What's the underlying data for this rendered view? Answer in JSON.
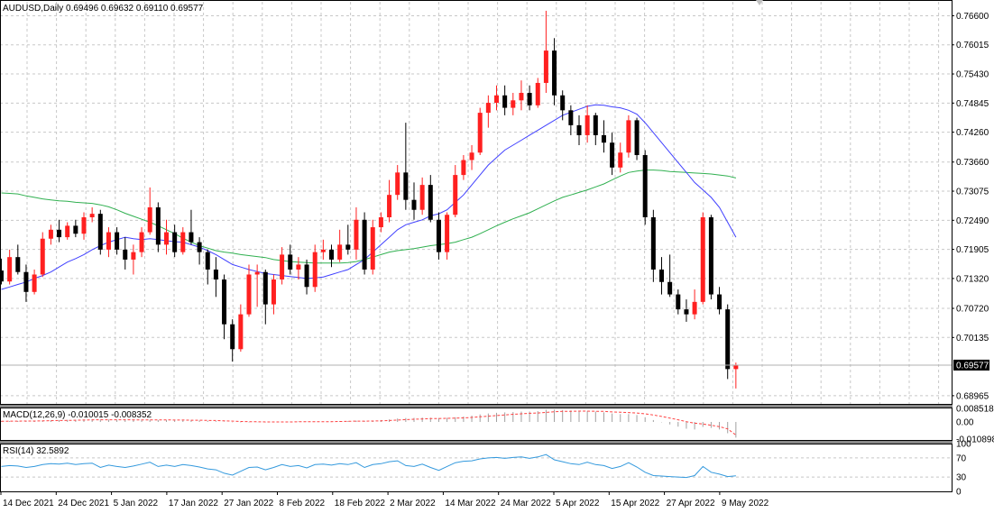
{
  "chart_data": {
    "type": "candlestick",
    "symbol_header": "AUDUSD,Daily  0.69496 0.69632 0.69110 0.69577",
    "current_price_label": "0.69577",
    "price_axis": {
      "ticks": [
        "0.76600",
        "0.76015",
        "0.75430",
        "0.74845",
        "0.74260",
        "0.73660",
        "0.73075",
        "0.72490",
        "0.71905",
        "0.71320",
        "0.70720",
        "0.70135",
        "0.68965"
      ],
      "range": [
        0.688,
        0.7688
      ]
    },
    "x_ticks": [
      "14 Dec 2021",
      "24 Dec 2021",
      "5 Jan 2022",
      "17 Jan 2022",
      "27 Jan 2022",
      "8 Feb 2022",
      "18 Feb 2022",
      "2 Mar 2022",
      "14 Mar 2022",
      "24 Mar 2022",
      "5 Apr 2022",
      "15 Apr 2022",
      "27 Apr 2022",
      "9 May 2022"
    ],
    "colors": {
      "bull": "#ff2020",
      "bear": "#000000",
      "ma_fast": "#4040ff",
      "ma_slow": "#30b050",
      "macd": "#ff4040",
      "rsi": "#3399dd",
      "grid": "#c8c8c8"
    },
    "candles_ohlc": [
      [
        0.7148,
        0.7172,
        0.712,
        0.7126
      ],
      [
        0.7126,
        0.719,
        0.712,
        0.7175
      ],
      [
        0.7175,
        0.72,
        0.714,
        0.7145
      ],
      [
        0.7145,
        0.716,
        0.7085,
        0.7105
      ],
      [
        0.7105,
        0.715,
        0.71,
        0.714
      ],
      [
        0.714,
        0.7225,
        0.7135,
        0.7212
      ],
      [
        0.7212,
        0.724,
        0.72,
        0.723
      ],
      [
        0.723,
        0.725,
        0.7205,
        0.7215
      ],
      [
        0.7215,
        0.7245,
        0.721,
        0.7238
      ],
      [
        0.7238,
        0.725,
        0.7215,
        0.7222
      ],
      [
        0.7222,
        0.7265,
        0.721,
        0.7255
      ],
      [
        0.7255,
        0.7275,
        0.7245,
        0.7262
      ],
      [
        0.7262,
        0.727,
        0.718,
        0.719
      ],
      [
        0.719,
        0.7235,
        0.7175,
        0.7225
      ],
      [
        0.7225,
        0.7235,
        0.718,
        0.719
      ],
      [
        0.719,
        0.7215,
        0.715,
        0.717
      ],
      [
        0.717,
        0.72,
        0.714,
        0.7185
      ],
      [
        0.7185,
        0.7235,
        0.7175,
        0.7225
      ],
      [
        0.7225,
        0.7315,
        0.722,
        0.7275
      ],
      [
        0.7275,
        0.7285,
        0.7185,
        0.72
      ],
      [
        0.72,
        0.725,
        0.718,
        0.7225
      ],
      [
        0.7225,
        0.724,
        0.7175,
        0.7185
      ],
      [
        0.7185,
        0.7235,
        0.718,
        0.7225
      ],
      [
        0.7225,
        0.727,
        0.72,
        0.7205
      ],
      [
        0.7205,
        0.7215,
        0.716,
        0.7185
      ],
      [
        0.7185,
        0.719,
        0.712,
        0.715
      ],
      [
        0.715,
        0.7175,
        0.7095,
        0.713
      ],
      [
        0.713,
        0.714,
        0.701,
        0.704
      ],
      [
        0.704,
        0.705,
        0.6965,
        0.699
      ],
      [
        0.699,
        0.708,
        0.6985,
        0.706
      ],
      [
        0.706,
        0.716,
        0.7055,
        0.714
      ],
      [
        0.714,
        0.716,
        0.7075,
        0.7145
      ],
      [
        0.7145,
        0.715,
        0.704,
        0.708
      ],
      [
        0.708,
        0.714,
        0.706,
        0.713
      ],
      [
        0.713,
        0.7195,
        0.712,
        0.718
      ],
      [
        0.718,
        0.72,
        0.714,
        0.715
      ],
      [
        0.715,
        0.7175,
        0.713,
        0.716
      ],
      [
        0.716,
        0.717,
        0.71,
        0.7115
      ],
      [
        0.7115,
        0.72,
        0.7105,
        0.7185
      ],
      [
        0.7185,
        0.721,
        0.717,
        0.719
      ],
      [
        0.719,
        0.72,
        0.7155,
        0.717
      ],
      [
        0.717,
        0.723,
        0.7165,
        0.72
      ],
      [
        0.72,
        0.724,
        0.718,
        0.719
      ],
      [
        0.719,
        0.7275,
        0.717,
        0.725
      ],
      [
        0.725,
        0.7265,
        0.714,
        0.715
      ],
      [
        0.715,
        0.725,
        0.714,
        0.7235
      ],
      [
        0.7235,
        0.7265,
        0.7225,
        0.7255
      ],
      [
        0.7255,
        0.733,
        0.7245,
        0.73
      ],
      [
        0.73,
        0.736,
        0.729,
        0.7345
      ],
      [
        0.7345,
        0.7445,
        0.727,
        0.729
      ],
      [
        0.729,
        0.7325,
        0.725,
        0.727
      ],
      [
        0.727,
        0.7335,
        0.726,
        0.732
      ],
      [
        0.732,
        0.734,
        0.7245,
        0.725
      ],
      [
        0.725,
        0.7265,
        0.717,
        0.7185
      ],
      [
        0.7185,
        0.7265,
        0.717,
        0.726
      ],
      [
        0.726,
        0.736,
        0.7255,
        0.734
      ],
      [
        0.734,
        0.738,
        0.733,
        0.737
      ],
      [
        0.737,
        0.74,
        0.735,
        0.7385
      ],
      [
        0.7385,
        0.7475,
        0.738,
        0.7465
      ],
      [
        0.7465,
        0.75,
        0.7435,
        0.7485
      ],
      [
        0.7485,
        0.752,
        0.747,
        0.75
      ],
      [
        0.75,
        0.752,
        0.746,
        0.7475
      ],
      [
        0.7475,
        0.7505,
        0.746,
        0.749
      ],
      [
        0.749,
        0.753,
        0.747,
        0.7505
      ],
      [
        0.7505,
        0.752,
        0.747,
        0.748
      ],
      [
        0.748,
        0.7535,
        0.7475,
        0.7525
      ],
      [
        0.7525,
        0.767,
        0.7505,
        0.759
      ],
      [
        0.759,
        0.7615,
        0.748,
        0.75
      ],
      [
        0.75,
        0.751,
        0.745,
        0.747
      ],
      [
        0.747,
        0.748,
        0.742,
        0.744
      ],
      [
        0.744,
        0.746,
        0.74,
        0.742
      ],
      [
        0.742,
        0.748,
        0.7405,
        0.746
      ],
      [
        0.746,
        0.7465,
        0.74,
        0.742
      ],
      [
        0.742,
        0.745,
        0.7385,
        0.7405
      ],
      [
        0.7405,
        0.7425,
        0.734,
        0.7355
      ],
      [
        0.7355,
        0.7405,
        0.7345,
        0.7385
      ],
      [
        0.7385,
        0.746,
        0.7375,
        0.745
      ],
      [
        0.745,
        0.7455,
        0.737,
        0.738
      ],
      [
        0.738,
        0.739,
        0.724,
        0.7255
      ],
      [
        0.7255,
        0.727,
        0.7125,
        0.715
      ],
      [
        0.715,
        0.7175,
        0.71,
        0.7125
      ],
      [
        0.7125,
        0.718,
        0.7095,
        0.71
      ],
      [
        0.71,
        0.711,
        0.706,
        0.707
      ],
      [
        0.707,
        0.709,
        0.7045,
        0.706
      ],
      [
        0.706,
        0.711,
        0.705,
        0.7085
      ],
      [
        0.7085,
        0.7265,
        0.708,
        0.7255
      ],
      [
        0.7255,
        0.726,
        0.709,
        0.71
      ],
      [
        0.71,
        0.7115,
        0.706,
        0.707
      ],
      [
        0.707,
        0.708,
        0.693,
        0.695
      ],
      [
        0.695,
        0.6963,
        0.6911,
        0.6958
      ]
    ],
    "ma_fast_values": [
      0.711,
      0.7115,
      0.712,
      0.7125,
      0.7132,
      0.7138,
      0.7145,
      0.7155,
      0.7165,
      0.7172,
      0.718,
      0.719,
      0.7198,
      0.7205,
      0.721,
      0.7215,
      0.7212,
      0.721,
      0.7212,
      0.721,
      0.7208,
      0.7206,
      0.7205,
      0.72,
      0.7195,
      0.7188,
      0.718,
      0.717,
      0.716,
      0.7155,
      0.715,
      0.7146,
      0.7142,
      0.714,
      0.7138,
      0.7136,
      0.7134,
      0.7132,
      0.7133,
      0.7135,
      0.714,
      0.7145,
      0.715,
      0.716,
      0.717,
      0.7185,
      0.72,
      0.7215,
      0.723,
      0.724,
      0.7245,
      0.725,
      0.7258,
      0.7262,
      0.727,
      0.7285,
      0.73,
      0.732,
      0.734,
      0.736,
      0.7375,
      0.739,
      0.74,
      0.741,
      0.742,
      0.743,
      0.744,
      0.745,
      0.746,
      0.7466,
      0.7472,
      0.7478,
      0.7481,
      0.748,
      0.7477,
      0.7475,
      0.747,
      0.7462,
      0.7445,
      0.7425,
      0.7405,
      0.7385,
      0.7365,
      0.7345,
      0.7325,
      0.731,
      0.7295,
      0.7275,
      0.7245,
      0.7215
    ],
    "ma_slow_values": [
      0.7304,
      0.7303,
      0.7302,
      0.7298,
      0.7295,
      0.7292,
      0.729,
      0.7288,
      0.7287,
      0.7285,
      0.7284,
      0.7283,
      0.728,
      0.7276,
      0.727,
      0.7263,
      0.7257,
      0.7251,
      0.7245,
      0.7238,
      0.723,
      0.7222,
      0.7213,
      0.7205,
      0.7198,
      0.7193,
      0.7188,
      0.7185,
      0.7183,
      0.718,
      0.7178,
      0.7176,
      0.7174,
      0.717,
      0.7168,
      0.7166,
      0.7165,
      0.7164,
      0.7163,
      0.7163,
      0.7163,
      0.7163,
      0.7164,
      0.7166,
      0.717,
      0.7175,
      0.718,
      0.7185,
      0.7188,
      0.719,
      0.7192,
      0.7195,
      0.7198,
      0.72,
      0.7202,
      0.7205,
      0.721,
      0.7215,
      0.7222,
      0.723,
      0.7238,
      0.7245,
      0.7252,
      0.7258,
      0.7264,
      0.7272,
      0.728,
      0.7288,
      0.7295,
      0.73,
      0.7305,
      0.731,
      0.7316,
      0.7322,
      0.733,
      0.7338,
      0.7345,
      0.7348,
      0.735,
      0.735,
      0.7349,
      0.7347,
      0.7346,
      0.7345,
      0.7344,
      0.7343,
      0.7342,
      0.734,
      0.7338,
      0.7334
    ],
    "macd": {
      "label": "MACD(12,26,9) -0.010015 -0.008352",
      "ticks": [
        "0.008518",
        "0.00",
        "-0.010898"
      ],
      "range": [
        -0.0115,
        0.0092
      ],
      "hist_values": [
        0.0005,
        0.0006,
        0.0006,
        0.0006,
        0.0007,
        0.0008,
        0.001,
        0.0012,
        0.0013,
        0.0014,
        0.0015,
        0.0016,
        0.0015,
        0.0015,
        0.0014,
        0.0013,
        0.0012,
        0.0012,
        0.0013,
        0.0012,
        0.0012,
        0.0011,
        0.0011,
        0.001,
        0.0009,
        0.0007,
        0.0005,
        0.0002,
        -0.0002,
        -0.0003,
        -0.0002,
        -0.0001,
        -0.0002,
        -0.0001,
        0.0001,
        0.0001,
        0.0002,
        0.0001,
        0.0002,
        0.0003,
        0.0004,
        0.0005,
        0.0006,
        0.0008,
        0.0007,
        0.0009,
        0.0012,
        0.0016,
        0.0022,
        0.0025,
        0.0026,
        0.0028,
        0.0027,
        0.0025,
        0.0026,
        0.003,
        0.0035,
        0.004,
        0.0048,
        0.0054,
        0.0058,
        0.0061,
        0.0063,
        0.0066,
        0.0066,
        0.0069,
        0.0078,
        0.0079,
        0.0077,
        0.0073,
        0.007,
        0.0069,
        0.0066,
        0.0061,
        0.0054,
        0.005,
        0.005,
        0.0044,
        0.003,
        0.0012,
        -0.0002,
        -0.0016,
        -0.003,
        -0.0043,
        -0.0048,
        -0.0032,
        -0.0038,
        -0.0048,
        -0.0072,
        -0.01
      ],
      "signal_values": [
        0.0004,
        0.0005,
        0.0005,
        0.0006,
        0.0006,
        0.0007,
        0.0008,
        0.0009,
        0.001,
        0.0011,
        0.0012,
        0.0013,
        0.0014,
        0.0014,
        0.0014,
        0.0014,
        0.0013,
        0.0013,
        0.0013,
        0.0013,
        0.0013,
        0.0012,
        0.0012,
        0.0011,
        0.0011,
        0.001,
        0.0009,
        0.0007,
        0.0005,
        0.0003,
        0.0002,
        0.0001,
        0.0,
        0.0,
        0.0,
        0.0,
        0.0001,
        0.0001,
        0.0001,
        0.0002,
        0.0002,
        0.0003,
        0.0004,
        0.0005,
        0.0005,
        0.0006,
        0.0007,
        0.0009,
        0.0012,
        0.0015,
        0.0017,
        0.0019,
        0.0021,
        0.0022,
        0.0023,
        0.0024,
        0.0026,
        0.0029,
        0.0033,
        0.0037,
        0.0041,
        0.0045,
        0.0049,
        0.0052,
        0.0055,
        0.0057,
        0.0061,
        0.0065,
        0.0067,
        0.0068,
        0.0069,
        0.0069,
        0.0068,
        0.0067,
        0.0064,
        0.0062,
        0.006,
        0.0057,
        0.0052,
        0.0044,
        0.0035,
        0.0025,
        0.0014,
        0.0002,
        -0.0008,
        -0.0013,
        -0.0021,
        -0.003,
        -0.0044,
        -0.0084
      ]
    },
    "rsi": {
      "label": "RSI(14) 32.5892",
      "ticks": [
        "100",
        "70",
        "30",
        "0"
      ],
      "range": [
        0,
        100
      ],
      "values": [
        52,
        54,
        53,
        50,
        52,
        56,
        58,
        57,
        59,
        56,
        58,
        59,
        50,
        55,
        52,
        50,
        53,
        57,
        61,
        52,
        55,
        52,
        56,
        54,
        51,
        47,
        45,
        38,
        34,
        42,
        50,
        51,
        45,
        50,
        56,
        52,
        54,
        49,
        56,
        57,
        55,
        58,
        56,
        60,
        50,
        56,
        58,
        62,
        64,
        54,
        52,
        57,
        50,
        44,
        52,
        60,
        63,
        64,
        68,
        70,
        71,
        69,
        71,
        72,
        69,
        72,
        77,
        66,
        62,
        58,
        56,
        61,
        56,
        54,
        48,
        52,
        60,
        51,
        40,
        33,
        32,
        31,
        30,
        29,
        33,
        52,
        40,
        36,
        31,
        32.5892
      ]
    }
  }
}
